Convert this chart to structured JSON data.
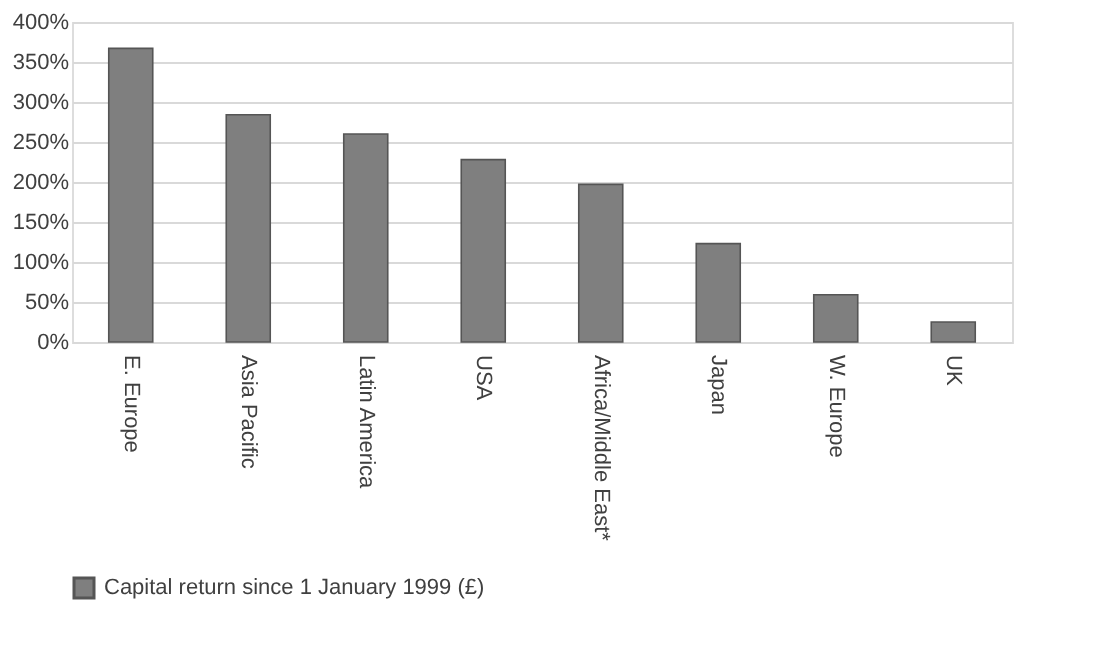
{
  "chart_data": {
    "type": "bar",
    "categories": [
      "E. Europe",
      "Asia Pacific",
      "Latin America",
      "USA",
      "Africa/Middle East*",
      "Japan",
      "W. Europe",
      "UK"
    ],
    "series": [
      {
        "name": "Capital return since 1 January 1999 (£)",
        "color": "#7f7f7f",
        "values": [
          367,
          284,
          260,
          228,
          197,
          123,
          59,
          25
        ]
      }
    ],
    "ylim": [
      0,
      400
    ],
    "yticks": [
      {
        "value": 0,
        "label": "0%"
      },
      {
        "value": 50,
        "label": "50%"
      },
      {
        "value": 100,
        "label": "100%"
      },
      {
        "value": 150,
        "label": "150%"
      },
      {
        "value": 200,
        "label": "200%"
      },
      {
        "value": 250,
        "label": "250%"
      },
      {
        "value": 300,
        "label": "300%"
      },
      {
        "value": 350,
        "label": "350%"
      },
      {
        "value": 400,
        "label": "400%"
      }
    ],
    "grid": "y",
    "legend": "bottom"
  }
}
